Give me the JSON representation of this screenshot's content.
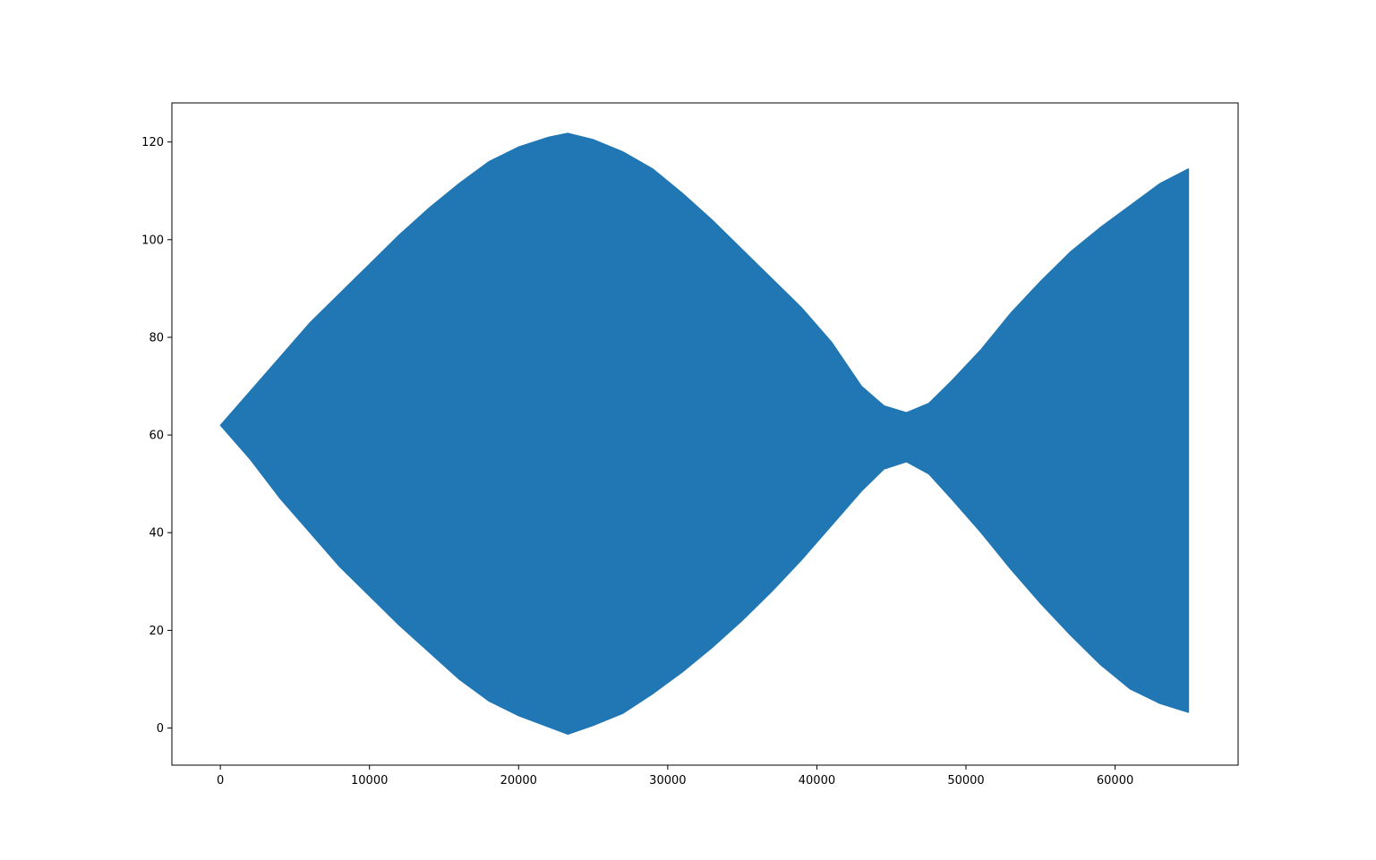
{
  "chart_data": {
    "type": "area",
    "title": "",
    "xlabel": "",
    "ylabel": "",
    "xlim": [
      -3250,
      68250
    ],
    "ylim": [
      -7.6,
      128.0
    ],
    "xticks": [
      0,
      10000,
      20000,
      30000,
      40000,
      50000,
      60000
    ],
    "yticks": [
      0,
      20,
      40,
      60,
      80,
      100,
      120
    ],
    "grid": false,
    "legend": "none",
    "series": [
      {
        "color": "#2077b4",
        "x": [
          0,
          2000,
          4000,
          6000,
          8000,
          10000,
          12000,
          14000,
          16000,
          18000,
          20000,
          22000,
          23300,
          25000,
          27000,
          29000,
          31000,
          33000,
          35000,
          37000,
          39000,
          41000,
          43000,
          44500,
          46000,
          47500,
          49000,
          51000,
          53000,
          55000,
          57000,
          59000,
          61000,
          63000,
          64900
        ],
        "upper": [
          62,
          69,
          76,
          83,
          89,
          95,
          101,
          106.5,
          111.5,
          116,
          119,
          121,
          121.8,
          120.5,
          118,
          114.5,
          109.5,
          104,
          98,
          92,
          86,
          79,
          70,
          66,
          64.6,
          66.5,
          71,
          77.5,
          85,
          91.5,
          97.5,
          102.5,
          107,
          111.5,
          114.5
        ],
        "lower": [
          62,
          55,
          47,
          40,
          33,
          27,
          21,
          15.5,
          10,
          5.5,
          2.5,
          0.2,
          -1.3,
          0.5,
          3,
          7,
          11.5,
          16.5,
          22,
          28,
          34.5,
          41.5,
          48.5,
          53,
          54.5,
          52,
          47,
          40,
          32.5,
          25.5,
          19,
          13,
          8,
          5,
          3.2
        ]
      }
    ]
  }
}
